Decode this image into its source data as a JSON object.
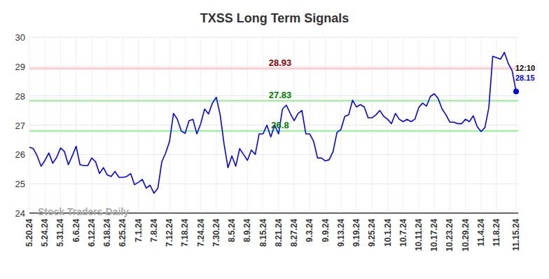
{
  "chart_data": {
    "type": "line",
    "title": "TXSS Long Term Signals",
    "categories": [
      "5.20.24",
      null,
      null,
      null,
      "5.24.24",
      null,
      null,
      null,
      "5.31.24",
      null,
      null,
      null,
      "6.6.24",
      null,
      null,
      null,
      "6.12.24",
      null,
      null,
      null,
      "6.18.24",
      null,
      null,
      null,
      "6.25.24",
      null,
      null,
      null,
      "7.1.24",
      null,
      null,
      null,
      "7.8.24",
      null,
      null,
      null,
      "7.12.24",
      null,
      null,
      null,
      "7.18.24",
      null,
      null,
      null,
      "7.24.24",
      null,
      null,
      null,
      "7.30.24",
      null,
      null,
      null,
      "8.5.24",
      null,
      null,
      null,
      "8.9.24",
      null,
      null,
      null,
      "8.15.24",
      null,
      null,
      null,
      "8.21.24",
      null,
      null,
      null,
      "8.27.24",
      null,
      null,
      null,
      "9.3.24",
      null,
      null,
      null,
      "9.9.24",
      null,
      null,
      null,
      "9.13.24",
      null,
      null,
      null,
      "9.19.24",
      null,
      null,
      null,
      "9.25.24",
      null,
      null,
      null,
      "10.1.24",
      null,
      null,
      null,
      "10.7.24",
      null,
      null,
      null,
      "10.11.24",
      null,
      null,
      null,
      "10.17.24",
      null,
      null,
      null,
      "10.23.24",
      null,
      null,
      null,
      "10.29.24",
      null,
      null,
      null,
      "11.4.24",
      null,
      null,
      null,
      "11.8.24",
      null,
      null,
      null,
      null,
      "11.15.24"
    ],
    "series": [
      {
        "name": "TXSS",
        "color": "#0000ff",
        "values": [
          26.25,
          26.2,
          25.95,
          25.6,
          25.8,
          26.05,
          25.7,
          25.9,
          26.22,
          26.1,
          25.65,
          25.95,
          26.28,
          25.65,
          25.62,
          25.62,
          25.88,
          25.75,
          25.35,
          25.55,
          25.3,
          25.25,
          25.42,
          25.22,
          25.22,
          25.25,
          25.35,
          24.97,
          25.05,
          25.15,
          24.85,
          24.95,
          24.68,
          24.85,
          25.75,
          26.05,
          26.45,
          27.4,
          27.2,
          26.8,
          26.72,
          27.15,
          27.2,
          26.7,
          27.05,
          27.55,
          27.38,
          27.75,
          27.95,
          27.35,
          26.35,
          25.55,
          25.95,
          25.6,
          26.2,
          26.0,
          25.8,
          26.15,
          26.0,
          26.7,
          26.7,
          27.0,
          26.6,
          27.0,
          26.7,
          27.55,
          27.68,
          27.4,
          27.15,
          27.4,
          27.5,
          26.7,
          26.7,
          26.45,
          25.88,
          25.88,
          25.78,
          25.82,
          26.1,
          26.75,
          26.85,
          27.3,
          27.35,
          27.85,
          27.62,
          27.7,
          27.62,
          27.25,
          27.25,
          27.35,
          27.5,
          27.3,
          27.2,
          27.05,
          27.4,
          27.2,
          27.12,
          27.2,
          27.12,
          27.2,
          27.6,
          27.75,
          27.65,
          27.98,
          28.07,
          27.9,
          27.55,
          27.35,
          27.1,
          27.1,
          27.05,
          27.05,
          27.2,
          27.12,
          27.32,
          26.95,
          26.78,
          26.92,
          27.6,
          29.35,
          29.3,
          29.25,
          29.48,
          29.1,
          28.85,
          28.15
        ]
      }
    ],
    "ylim": [
      24,
      30
    ],
    "yticks": [
      24,
      25,
      26,
      27,
      28,
      29,
      30
    ],
    "grid": true,
    "annotations": [
      {
        "label": "28.93",
        "value": 28.93,
        "color": "#8b0000"
      },
      {
        "label": "27.83",
        "value": 27.83,
        "color": "#008000"
      },
      {
        "label": "26.8",
        "value": 26.8,
        "color": "#008000"
      },
      {
        "text": "12:10"
      },
      {
        "text": "Stock Traders Daily"
      }
    ]
  }
}
